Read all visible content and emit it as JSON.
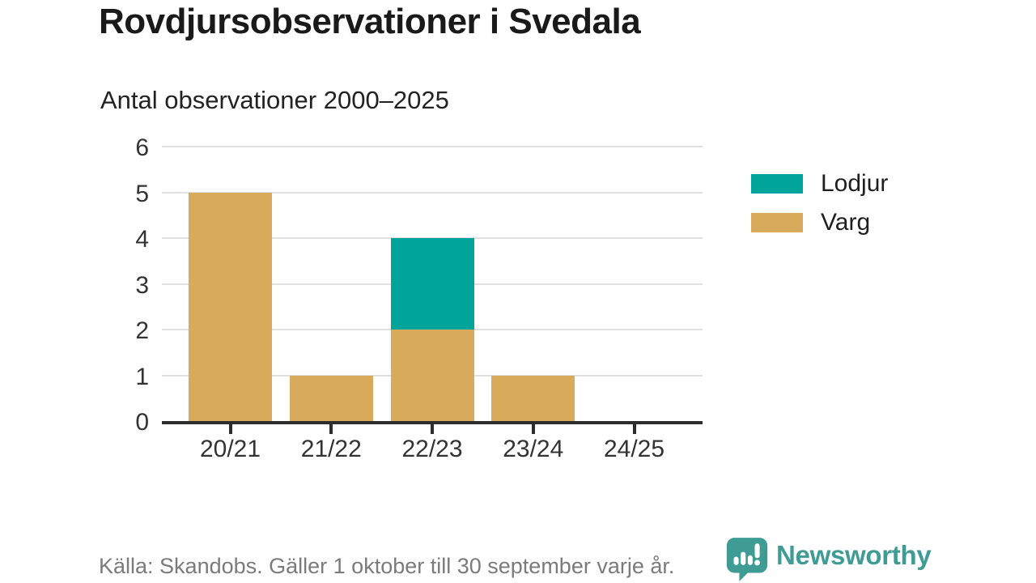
{
  "title": "Rovdjursobservationer i Svedala",
  "subtitle": "Antal observationer 2000–2025",
  "legend": {
    "items": [
      {
        "label": "Lodjur",
        "color": "#00a49a"
      },
      {
        "label": "Varg",
        "color": "#d8ab5c"
      }
    ]
  },
  "footer": {
    "source": "Källa: Skandobs. Gäller 1 oktober till 30 september varje år.",
    "brand": "Newsworthy"
  },
  "colors": {
    "lodjur_teal": "#00a49a",
    "varg_tan": "#d8ab5c",
    "axis": "#2d2d2d",
    "grid": "#e0e0e0",
    "tick_label": "#333333",
    "source_gray": "#7b7b7b",
    "brand_teal": "#3f9c95"
  },
  "chart_data": {
    "type": "bar",
    "stacked": true,
    "title": "Rovdjursobservationer i Svedala",
    "subtitle": "Antal observationer 2000–2025",
    "categories": [
      "20/21",
      "21/22",
      "22/23",
      "23/24",
      "24/25"
    ],
    "series": [
      {
        "name": "Lodjur",
        "color": "#00a49a",
        "values": [
          0,
          0,
          2,
          0,
          0
        ]
      },
      {
        "name": "Varg",
        "color": "#d8ab5c",
        "values": [
          5,
          1,
          2,
          1,
          0
        ]
      }
    ],
    "totals": [
      5,
      1,
      4,
      1,
      0
    ],
    "xlabel": "",
    "ylabel": "",
    "ylim": [
      0,
      6
    ],
    "yticks": [
      0,
      1,
      2,
      3,
      4,
      5,
      6
    ],
    "grid": true,
    "legend_position": "right"
  }
}
